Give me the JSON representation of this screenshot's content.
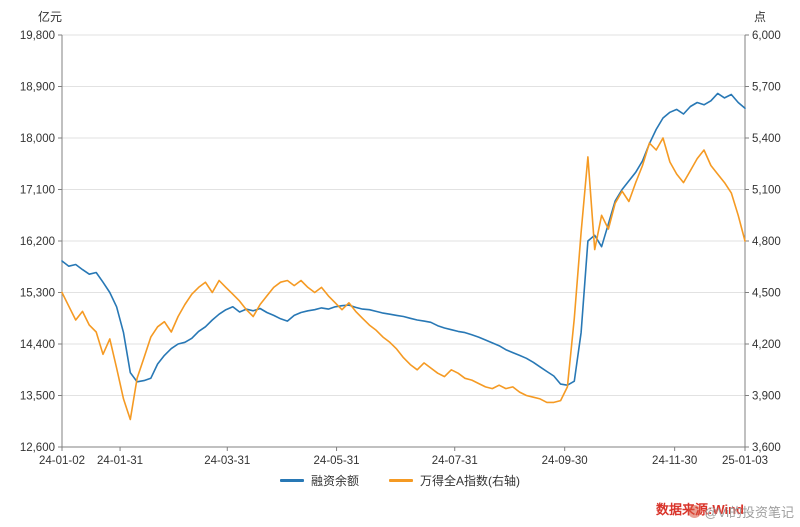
{
  "chart_data": {
    "type": "line",
    "title": "",
    "left_unit": "亿元",
    "right_unit": "点",
    "grid": "horizontal",
    "legend_position": "bottom",
    "left_axis": {
      "min": 12600,
      "max": 19800,
      "ticks": [
        {
          "v": 12600,
          "label": "12,600"
        },
        {
          "v": 13500,
          "label": "13,500"
        },
        {
          "v": 14400,
          "label": "14,400"
        },
        {
          "v": 15300,
          "label": "15,300"
        },
        {
          "v": 16200,
          "label": "16,200"
        },
        {
          "v": 17100,
          "label": "17,100"
        },
        {
          "v": 18000,
          "label": "18,000"
        },
        {
          "v": 18900,
          "label": "18,900"
        },
        {
          "v": 19800,
          "label": "19,800"
        }
      ]
    },
    "right_axis": {
      "min": 3600,
      "max": 6000,
      "ticks": [
        {
          "v": 3600,
          "label": "3,600"
        },
        {
          "v": 3900,
          "label": "3,900"
        },
        {
          "v": 4200,
          "label": "4,200"
        },
        {
          "v": 4500,
          "label": "4,500"
        },
        {
          "v": 4800,
          "label": "4,800"
        },
        {
          "v": 5100,
          "label": "5,100"
        },
        {
          "v": 5400,
          "label": "5,400"
        },
        {
          "v": 5700,
          "label": "5,700"
        },
        {
          "v": 6000,
          "label": "6,000"
        }
      ]
    },
    "x_ticks": [
      {
        "t": 0.0,
        "label": "24-01-02"
      },
      {
        "t": 0.085,
        "label": "24-01-31"
      },
      {
        "t": 0.242,
        "label": "24-03-31"
      },
      {
        "t": 0.402,
        "label": "24-05-31"
      },
      {
        "t": 0.575,
        "label": "24-07-31"
      },
      {
        "t": 0.736,
        "label": "24-09-30"
      },
      {
        "t": 0.897,
        "label": "24-11-30"
      },
      {
        "t": 1.0,
        "label": "25-01-03"
      }
    ],
    "series": [
      {
        "name": "融资余额",
        "axis": "left",
        "color": "#2878b5",
        "values": [
          15850,
          15760,
          15790,
          15700,
          15620,
          15650,
          15480,
          15300,
          15050,
          14600,
          13900,
          13740,
          13760,
          13800,
          14050,
          14200,
          14320,
          14400,
          14430,
          14500,
          14620,
          14700,
          14820,
          14920,
          15000,
          15050,
          14960,
          15010,
          14980,
          15020,
          14950,
          14900,
          14840,
          14800,
          14900,
          14950,
          14980,
          15000,
          15030,
          15010,
          15050,
          15070,
          15080,
          15040,
          15010,
          15000,
          14970,
          14940,
          14920,
          14900,
          14880,
          14850,
          14820,
          14800,
          14780,
          14720,
          14680,
          14650,
          14620,
          14600,
          14560,
          14520,
          14470,
          14420,
          14370,
          14300,
          14250,
          14200,
          14150,
          14080,
          14000,
          13920,
          13840,
          13700,
          13680,
          13750,
          14600,
          16200,
          16300,
          16100,
          16500,
          16900,
          17100,
          17250,
          17400,
          17600,
          17900,
          18150,
          18350,
          18450,
          18500,
          18420,
          18550,
          18620,
          18580,
          18650,
          18780,
          18700,
          18760,
          18620,
          18520
        ]
      },
      {
        "name": "万得全A指数(右轴)",
        "axis": "right",
        "color": "#f59a23",
        "values": [
          4500,
          4420,
          4340,
          4390,
          4310,
          4270,
          4140,
          4230,
          4060,
          3880,
          3760,
          4000,
          4120,
          4240,
          4300,
          4330,
          4270,
          4360,
          4430,
          4490,
          4530,
          4560,
          4500,
          4570,
          4530,
          4490,
          4450,
          4400,
          4360,
          4430,
          4480,
          4530,
          4560,
          4570,
          4540,
          4570,
          4530,
          4500,
          4530,
          4480,
          4440,
          4400,
          4440,
          4390,
          4350,
          4310,
          4280,
          4240,
          4210,
          4170,
          4120,
          4080,
          4050,
          4090,
          4060,
          4030,
          4010,
          4050,
          4030,
          4000,
          3990,
          3970,
          3950,
          3940,
          3960,
          3940,
          3950,
          3920,
          3900,
          3890,
          3880,
          3860,
          3860,
          3870,
          3950,
          4350,
          4850,
          5290,
          4750,
          4950,
          4870,
          5020,
          5090,
          5030,
          5140,
          5240,
          5370,
          5330,
          5400,
          5260,
          5190,
          5140,
          5210,
          5280,
          5330,
          5240,
          5190,
          5140,
          5080,
          4950,
          4800
        ]
      }
    ]
  },
  "legend": {
    "items": [
      {
        "label": "融资余额"
      },
      {
        "label": "万得全A指数(右轴)"
      }
    ]
  },
  "watermark": {
    "source_text": "数据来源:Wind",
    "source_color": "#d9342b",
    "handle_text": "@Vi的投资笔记",
    "handle_color": "#9e9e9e"
  }
}
